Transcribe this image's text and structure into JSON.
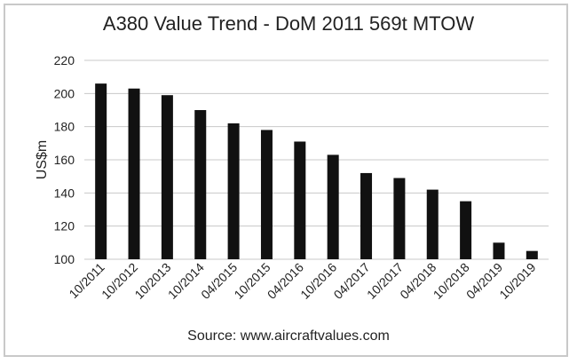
{
  "chart_data": {
    "type": "bar",
    "title": "A380 Value Trend - DoM 2011 569t MTOW",
    "ylabel": "US$m",
    "xlabel": "",
    "ylim": [
      100,
      220
    ],
    "yticks": [
      100,
      120,
      140,
      160,
      180,
      200,
      220
    ],
    "categories": [
      "10/2011",
      "10/2012",
      "10/2013",
      "10/2014",
      "04/2015",
      "10/2015",
      "04/2016",
      "10/2016",
      "04/2017",
      "10/2017",
      "04/2018",
      "10/2018",
      "04/2019",
      "10/2019"
    ],
    "values": [
      206,
      203,
      199,
      190,
      182,
      178,
      171,
      163,
      152,
      149,
      142,
      135,
      110,
      105
    ],
    "bar_color": "#111111",
    "grid": true,
    "legend": "none",
    "source": "Source: www.aircraftvalues.com"
  }
}
